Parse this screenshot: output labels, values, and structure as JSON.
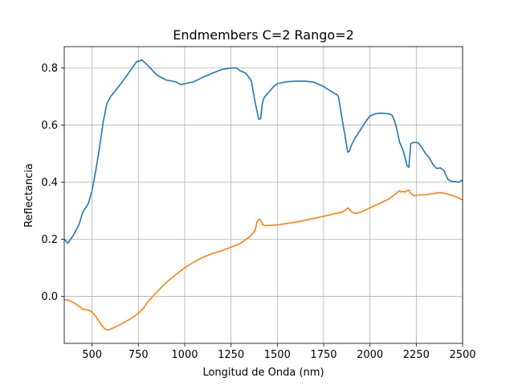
{
  "chart_data": {
    "type": "line",
    "title": "Endmembers C=2 Rango=2",
    "xlabel": "Longitud de Onda (nm)",
    "ylabel": "Reflectancia",
    "xlim": [
      350,
      2500
    ],
    "ylim": [
      -0.165,
      0.875
    ],
    "xticks": [
      500,
      750,
      1000,
      1250,
      1500,
      1750,
      2000,
      2250,
      2500
    ],
    "yticks": [
      0.0,
      0.2,
      0.4,
      0.6,
      0.8
    ],
    "ytick_labels": [
      "0.0",
      "0.2",
      "0.4",
      "0.6",
      "0.8"
    ],
    "grid": true,
    "colors": {
      "series1": "#1f77b4",
      "series2": "#ff7f0e"
    },
    "series": [
      {
        "x": [
          350,
          370,
          400,
          430,
          450,
          480,
          500,
          520,
          540,
          560,
          580,
          600,
          650,
          700,
          740,
          770,
          800,
          850,
          900,
          950,
          980,
          1000,
          1050,
          1100,
          1150,
          1200,
          1250,
          1280,
          1300,
          1330,
          1360,
          1380,
          1400,
          1410,
          1420,
          1430,
          1450,
          1480,
          1500,
          1550,
          1600,
          1650,
          1700,
          1750,
          1800,
          1810,
          1820,
          1830,
          1850,
          1870,
          1880,
          1890,
          1900,
          1920,
          1950,
          1980,
          2000,
          2030,
          2060,
          2100,
          2120,
          2140,
          2160,
          2180,
          2200,
          2210,
          2220,
          2240,
          2260,
          2280,
          2300,
          2320,
          2340,
          2360,
          2380,
          2400,
          2420,
          2440,
          2460,
          2480,
          2500
        ],
        "values": [
          0.2,
          0.186,
          0.215,
          0.252,
          0.295,
          0.325,
          0.37,
          0.44,
          0.52,
          0.61,
          0.675,
          0.7,
          0.74,
          0.785,
          0.822,
          0.828,
          0.81,
          0.775,
          0.758,
          0.752,
          0.742,
          0.745,
          0.752,
          0.768,
          0.782,
          0.795,
          0.8,
          0.8,
          0.79,
          0.782,
          0.755,
          0.68,
          0.62,
          0.622,
          0.68,
          0.698,
          0.712,
          0.735,
          0.745,
          0.752,
          0.754,
          0.754,
          0.75,
          0.735,
          0.715,
          0.71,
          0.708,
          0.7,
          0.62,
          0.545,
          0.505,
          0.51,
          0.53,
          0.555,
          0.585,
          0.615,
          0.632,
          0.64,
          0.642,
          0.64,
          0.635,
          0.6,
          0.54,
          0.51,
          0.458,
          0.452,
          0.535,
          0.54,
          0.538,
          0.522,
          0.5,
          0.486,
          0.462,
          0.448,
          0.45,
          0.44,
          0.41,
          0.403,
          0.402,
          0.4,
          0.408
        ]
      },
      {
        "x": [
          350,
          370,
          400,
          430,
          450,
          480,
          500,
          520,
          550,
          570,
          590,
          610,
          650,
          700,
          750,
          780,
          800,
          850,
          900,
          950,
          1000,
          1050,
          1100,
          1150,
          1200,
          1250,
          1300,
          1350,
          1380,
          1390,
          1400,
          1410,
          1420,
          1430,
          1450,
          1500,
          1600,
          1700,
          1800,
          1850,
          1870,
          1880,
          1890,
          1900,
          1920,
          1950,
          2000,
          2050,
          2100,
          2140,
          2160,
          2170,
          2180,
          2190,
          2200,
          2210,
          2220,
          2240,
          2260,
          2300,
          2340,
          2380,
          2420,
          2460,
          2500
        ],
        "values": [
          -0.012,
          -0.013,
          -0.022,
          -0.035,
          -0.045,
          -0.048,
          -0.055,
          -0.07,
          -0.1,
          -0.115,
          -0.118,
          -0.112,
          -0.1,
          -0.082,
          -0.06,
          -0.04,
          -0.02,
          0.015,
          0.048,
          0.075,
          0.1,
          0.12,
          0.137,
          0.15,
          0.16,
          0.172,
          0.185,
          0.208,
          0.23,
          0.26,
          0.27,
          0.268,
          0.252,
          0.248,
          0.248,
          0.25,
          0.26,
          0.273,
          0.288,
          0.295,
          0.303,
          0.31,
          0.305,
          0.296,
          0.29,
          0.295,
          0.31,
          0.325,
          0.34,
          0.36,
          0.37,
          0.365,
          0.368,
          0.365,
          0.37,
          0.372,
          0.36,
          0.352,
          0.355,
          0.356,
          0.36,
          0.364,
          0.358,
          0.35,
          0.338
        ]
      }
    ]
  }
}
